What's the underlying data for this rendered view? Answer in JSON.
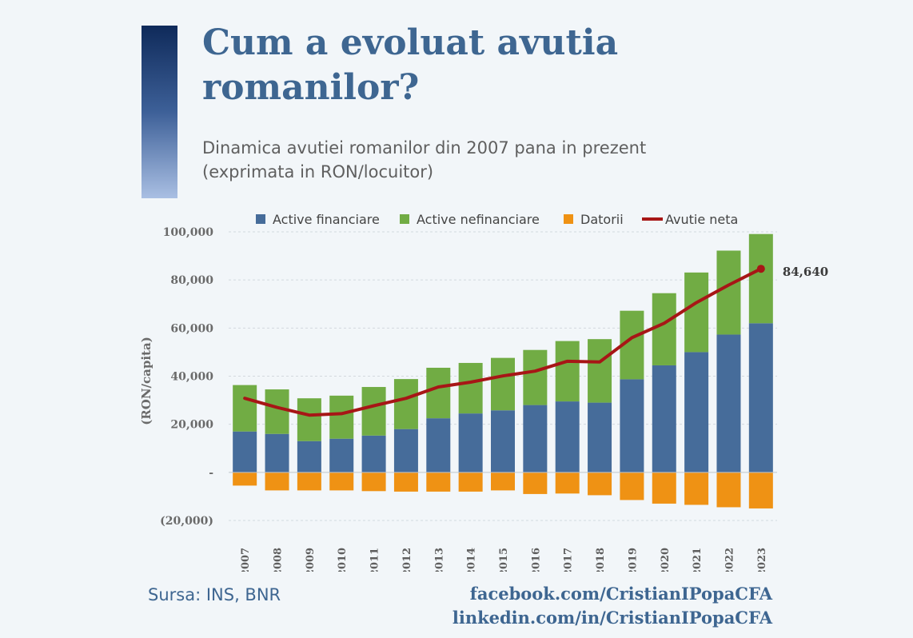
{
  "header": {
    "title_line1": "Cum a evoluat avutia",
    "title_line2": "romanilor?",
    "subtitle_line1": "Dinamica avutiei romanilor din 2007 pana in prezent",
    "subtitle_line2": "(exprimata in RON/locuitor)"
  },
  "footer": {
    "source": "Sursa: INS, BNR",
    "facebook": "facebook.com/CristianIPopaCFA",
    "linkedin": "linkedin.com/in/CristianIPopaCFA"
  },
  "colors": {
    "title": "#3e6691",
    "active_financiare": "#466c9a",
    "active_nefinanciare": "#71ac44",
    "datorii": "#ef9214",
    "avutie_neta": "#a71616"
  },
  "chart_data": {
    "type": "bar",
    "stacked": true,
    "ylabel": "(RON/capita)",
    "ylim": [
      -20000,
      100000
    ],
    "yticks": [
      -20000,
      0,
      20000,
      40000,
      60000,
      80000,
      100000
    ],
    "ytick_labels": [
      "(20,000)",
      "-",
      "20,000",
      "40,000",
      "60,000",
      "80,000",
      "100,000"
    ],
    "grid": true,
    "legend_position": "top",
    "categories": [
      "2007",
      "2008",
      "2009",
      "2010",
      "2011",
      "2012",
      "2013",
      "2014",
      "2015",
      "2016",
      "2017",
      "2018",
      "2019",
      "2020",
      "2021",
      "2022",
      "2023"
    ],
    "series": [
      {
        "name": "Active financiare",
        "type": "bar",
        "values": [
          17000,
          16000,
          13000,
          14000,
          15300,
          18000,
          22500,
          24500,
          25800,
          28000,
          29500,
          29000,
          38700,
          44500,
          50000,
          57300,
          62000
        ]
      },
      {
        "name": "Active nefinanciare",
        "type": "bar",
        "values": [
          19300,
          18500,
          17800,
          17900,
          20200,
          20800,
          21000,
          21000,
          21800,
          22900,
          25100,
          26400,
          28500,
          30000,
          33100,
          34900,
          37100
        ]
      },
      {
        "name": "Datorii",
        "type": "bar",
        "values": [
          -5500,
          -7500,
          -7500,
          -7500,
          -7800,
          -8000,
          -8000,
          -8000,
          -7500,
          -9000,
          -8800,
          -9500,
          -11500,
          -13000,
          -13500,
          -14500,
          -15000
        ]
      },
      {
        "name": "Avutie neta",
        "type": "line",
        "values": [
          30800,
          27000,
          23800,
          24400,
          27700,
          30800,
          35500,
          37500,
          40100,
          42100,
          46200,
          45900,
          56000,
          62000,
          70600,
          77900,
          84640
        ]
      }
    ],
    "annotations": [
      {
        "category": "2023",
        "series": "Avutie neta",
        "text": "84,640"
      }
    ]
  }
}
